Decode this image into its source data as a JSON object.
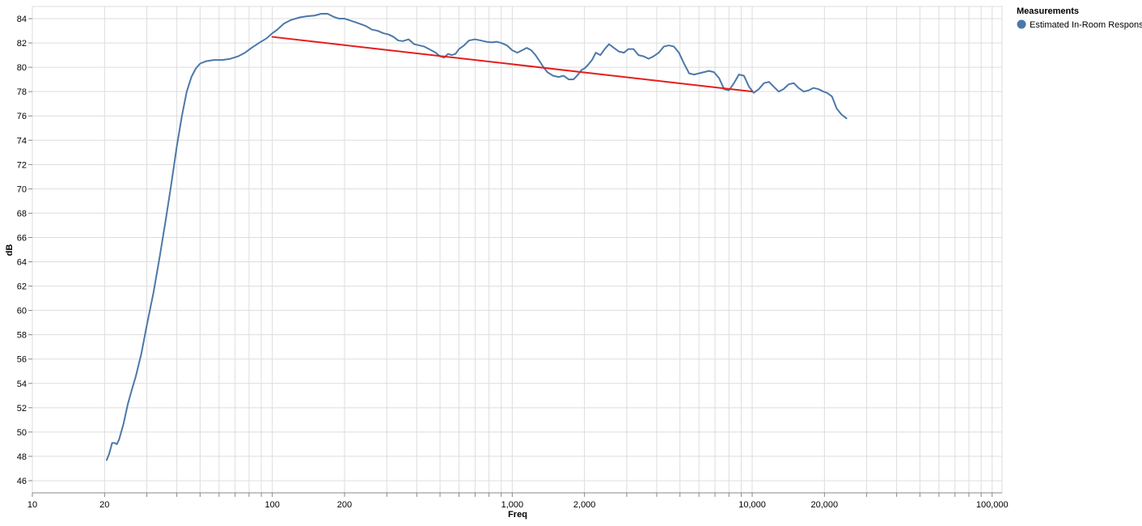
{
  "chart_data": {
    "type": "line",
    "xlabel": "Freq",
    "ylabel": "dB",
    "x_scale": "log",
    "xlim": [
      10,
      110000
    ],
    "ylim": [
      45,
      85
    ],
    "x_ticks": [
      {
        "value": 10,
        "label": "10"
      },
      {
        "value": 20,
        "label": "20"
      },
      {
        "value": 100,
        "label": "100"
      },
      {
        "value": 200,
        "label": "200"
      },
      {
        "value": 1000,
        "label": "1,000"
      },
      {
        "value": 2000,
        "label": "2,000"
      },
      {
        "value": 10000,
        "label": "10,000"
      },
      {
        "value": 20000,
        "label": "20,000"
      },
      {
        "value": 100000,
        "label": "100,000"
      }
    ],
    "y_ticks": [
      46,
      48,
      50,
      52,
      54,
      56,
      58,
      60,
      62,
      64,
      66,
      68,
      70,
      72,
      74,
      76,
      78,
      80,
      82,
      84
    ],
    "grid": true,
    "legend": {
      "title": "Measurements",
      "position": "top-right",
      "entries": [
        {
          "label": "Estimated In-Room Response",
          "color": "#4c78a8"
        }
      ]
    },
    "series": [
      {
        "name": "Estimated In-Room Response",
        "color": "#4c78a8",
        "points": [
          [
            20.4,
            47.7
          ],
          [
            20.9,
            48.2
          ],
          [
            21.5,
            49.1
          ],
          [
            22.0,
            49.1
          ],
          [
            22.5,
            49.0
          ],
          [
            23.0,
            49.4
          ],
          [
            24.0,
            50.7
          ],
          [
            25.0,
            52.3
          ],
          [
            26.0,
            53.5
          ],
          [
            27.0,
            54.6
          ],
          [
            28.5,
            56.5
          ],
          [
            30.0,
            58.8
          ],
          [
            32.0,
            61.5
          ],
          [
            34.0,
            64.5
          ],
          [
            36.0,
            67.5
          ],
          [
            38.0,
            70.5
          ],
          [
            40.0,
            73.5
          ],
          [
            42.0,
            76.0
          ],
          [
            44.0,
            78.0
          ],
          [
            46.0,
            79.2
          ],
          [
            48.0,
            79.9
          ],
          [
            50.0,
            80.3
          ],
          [
            53.0,
            80.5
          ],
          [
            57.0,
            80.6
          ],
          [
            62.0,
            80.6
          ],
          [
            67.0,
            80.7
          ],
          [
            72.0,
            80.9
          ],
          [
            77.0,
            81.2
          ],
          [
            82.0,
            81.6
          ],
          [
            88.0,
            82.0
          ],
          [
            95.0,
            82.4
          ],
          [
            100.0,
            82.8
          ],
          [
            105.0,
            83.1
          ],
          [
            112.0,
            83.6
          ],
          [
            120.0,
            83.9
          ],
          [
            130.0,
            84.1
          ],
          [
            140.0,
            84.2
          ],
          [
            150.0,
            84.25
          ],
          [
            160.0,
            84.4
          ],
          [
            170.0,
            84.4
          ],
          [
            180.0,
            84.15
          ],
          [
            190.0,
            84.0
          ],
          [
            200.0,
            84.0
          ],
          [
            215.0,
            83.8
          ],
          [
            230.0,
            83.6
          ],
          [
            245.0,
            83.4
          ],
          [
            260.0,
            83.1
          ],
          [
            275.0,
            83.0
          ],
          [
            290.0,
            82.8
          ],
          [
            305.0,
            82.7
          ],
          [
            320.0,
            82.5
          ],
          [
            335.0,
            82.2
          ],
          [
            350.0,
            82.15
          ],
          [
            370.0,
            82.3
          ],
          [
            390.0,
            81.9
          ],
          [
            410.0,
            81.8
          ],
          [
            430.0,
            81.7
          ],
          [
            450.0,
            81.5
          ],
          [
            480.0,
            81.2
          ],
          [
            500.0,
            80.9
          ],
          [
            520.0,
            80.8
          ],
          [
            540.0,
            81.1
          ],
          [
            560.0,
            81.0
          ],
          [
            580.0,
            81.1
          ],
          [
            600.0,
            81.5
          ],
          [
            630.0,
            81.8
          ],
          [
            660.0,
            82.2
          ],
          [
            700.0,
            82.3
          ],
          [
            740.0,
            82.2
          ],
          [
            780.0,
            82.1
          ],
          [
            820.0,
            82.05
          ],
          [
            860.0,
            82.1
          ],
          [
            900.0,
            82.0
          ],
          [
            950.0,
            81.8
          ],
          [
            1000.0,
            81.4
          ],
          [
            1050.0,
            81.2
          ],
          [
            1100.0,
            81.4
          ],
          [
            1150.0,
            81.6
          ],
          [
            1200.0,
            81.4
          ],
          [
            1250.0,
            81.0
          ],
          [
            1300.0,
            80.5
          ],
          [
            1350.0,
            80.0
          ],
          [
            1400.0,
            79.6
          ],
          [
            1480.0,
            79.3
          ],
          [
            1560.0,
            79.2
          ],
          [
            1640.0,
            79.3
          ],
          [
            1720.0,
            79.0
          ],
          [
            1800.0,
            79.0
          ],
          [
            1880.0,
            79.4
          ],
          [
            1950.0,
            79.8
          ],
          [
            2000.0,
            79.9
          ],
          [
            2070.0,
            80.2
          ],
          [
            2150.0,
            80.6
          ],
          [
            2230.0,
            81.2
          ],
          [
            2330.0,
            81.0
          ],
          [
            2430.0,
            81.5
          ],
          [
            2530.0,
            81.9
          ],
          [
            2650.0,
            81.6
          ],
          [
            2780.0,
            81.3
          ],
          [
            2920.0,
            81.2
          ],
          [
            3050.0,
            81.5
          ],
          [
            3200.0,
            81.5
          ],
          [
            3360.0,
            81.0
          ],
          [
            3530.0,
            80.9
          ],
          [
            3700.0,
            80.7
          ],
          [
            3880.0,
            80.9
          ],
          [
            4080.0,
            81.2
          ],
          [
            4280.0,
            81.7
          ],
          [
            4500.0,
            81.8
          ],
          [
            4720.0,
            81.7
          ],
          [
            4950.0,
            81.2
          ],
          [
            5200.0,
            80.3
          ],
          [
            5460.0,
            79.5
          ],
          [
            5730.0,
            79.4
          ],
          [
            6000.0,
            79.5
          ],
          [
            6300.0,
            79.6
          ],
          [
            6600.0,
            79.7
          ],
          [
            6930.0,
            79.6
          ],
          [
            7280.0,
            79.1
          ],
          [
            7640.0,
            78.2
          ],
          [
            8000.0,
            78.1
          ],
          [
            8400.0,
            78.7
          ],
          [
            8800.0,
            79.4
          ],
          [
            9240.0,
            79.3
          ],
          [
            9700.0,
            78.4
          ],
          [
            10150.0,
            77.9
          ],
          [
            10650.0,
            78.2
          ],
          [
            11200.0,
            78.7
          ],
          [
            11750.0,
            78.8
          ],
          [
            12300.0,
            78.4
          ],
          [
            12900.0,
            78.0
          ],
          [
            13500.0,
            78.2
          ],
          [
            14200.0,
            78.6
          ],
          [
            14900.0,
            78.7
          ],
          [
            15600.0,
            78.3
          ],
          [
            16400.0,
            78.0
          ],
          [
            17200.0,
            78.1
          ],
          [
            18000.0,
            78.3
          ],
          [
            18900.0,
            78.2
          ],
          [
            19800.0,
            78.0
          ],
          [
            20500.0,
            77.9
          ],
          [
            21500.0,
            77.6
          ],
          [
            22500.0,
            76.6
          ],
          [
            23600.0,
            76.1
          ],
          [
            24700.0,
            75.8
          ]
        ]
      },
      {
        "name": "",
        "color": "#e51d1d",
        "points": [
          [
            100,
            82.5
          ],
          [
            10000,
            78.0
          ]
        ]
      }
    ]
  }
}
